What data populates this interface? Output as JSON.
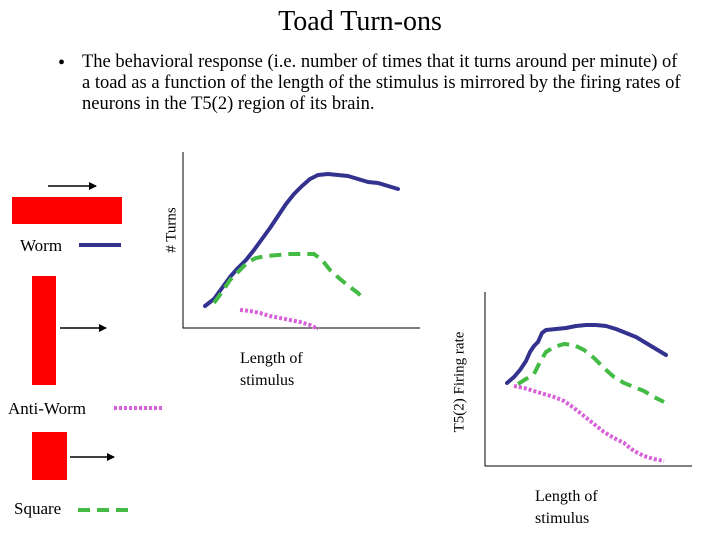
{
  "title": "Toad Turn-ons",
  "bullet": {
    "symbol": "•",
    "text": "The behavioral response (i.e. number of times that it turns around per minute) of a toad as a function of the length of the stimulus is mirrored by the firing rates of neurons in the T5(2) region of its brain."
  },
  "legend": {
    "worm": {
      "label": "Worm",
      "color": "#33338f",
      "style": "solid"
    },
    "antiworm": {
      "label": "Anti-Worm",
      "color": "#d860d8",
      "style": "dotted"
    },
    "square": {
      "label": "Square",
      "color": "#44bb44",
      "style": "dashed"
    }
  },
  "stimuli": {
    "worm": "horizontal bar moving right",
    "antiworm": "vertical bar moving right",
    "square": "square moving right"
  },
  "left_plot": {
    "ylabel": "# Turns",
    "xlabel_line1": "Length of",
    "xlabel_line2": "stimulus"
  },
  "right_plot": {
    "ylabel": "T5(2) Firing rate",
    "xlabel_line1": "Length of",
    "xlabel_line2": "stimulus"
  },
  "colors": {
    "stimulus_red": "#ff0000",
    "worm": "#33338f",
    "antiworm": "#d860d8",
    "square": "#44bb44"
  }
}
